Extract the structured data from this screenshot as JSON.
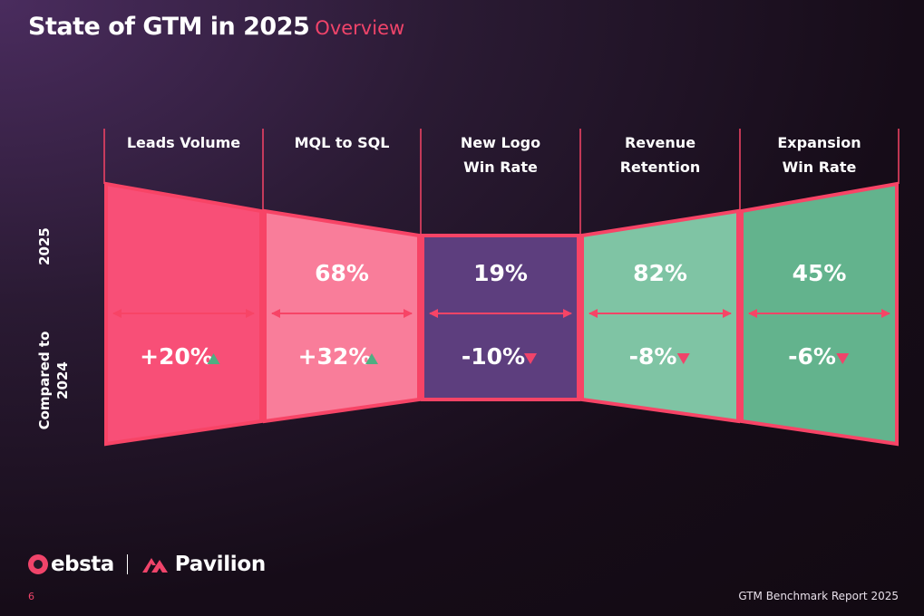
{
  "header": {
    "title": "State of GTM in 2025",
    "subtitle": "Overview"
  },
  "row_labels": {
    "current": "2025",
    "compare": [
      "Compared to",
      "2024"
    ]
  },
  "chart_data": {
    "type": "table",
    "title": "State of GTM in 2025",
    "columns": [
      {
        "label": [
          "Leads Volume"
        ],
        "value_2025": "",
        "change_vs_2024": "+20%",
        "direction": "up",
        "fill": "#f84f77"
      },
      {
        "label": [
          "MQL to SQL"
        ],
        "value_2025": "68%",
        "change_vs_2024": "+32%",
        "direction": "up",
        "fill": "#f97d9a"
      },
      {
        "label": [
          "New Logo",
          "Win Rate"
        ],
        "value_2025": "19%",
        "change_vs_2024": "-10%",
        "direction": "down",
        "fill": "#5d3e7e"
      },
      {
        "label": [
          "Revenue",
          "Retention"
        ],
        "value_2025": "82%",
        "change_vs_2024": "-8%",
        "direction": "down",
        "fill": "#7fc4a4"
      },
      {
        "label": [
          "Expansion",
          "Win Rate"
        ],
        "value_2025": "45%",
        "change_vs_2024": "-6%",
        "direction": "down",
        "fill": "#63b38d"
      }
    ],
    "colors": {
      "border": "#f74466",
      "up_arrow": "#4fae82",
      "down_arrow": "#f0446a"
    }
  },
  "footer": {
    "brand_1": "ebsta",
    "brand_2": "Pavilion",
    "page_number": "6",
    "report": "GTM Benchmark Report 2025"
  }
}
